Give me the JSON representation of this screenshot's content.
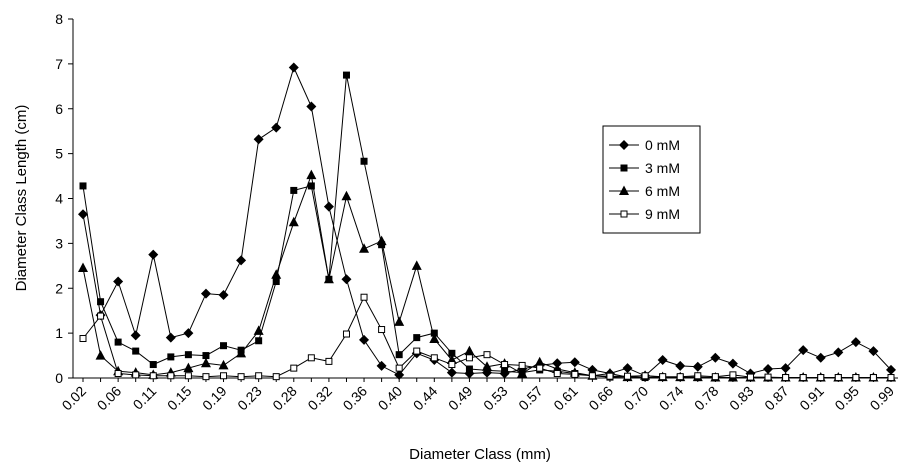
{
  "chart_data": {
    "type": "line",
    "xlabel": "Diameter Class (mm)",
    "ylabel": "Diameter Class Length (cm)",
    "ylim": [
      0,
      8
    ],
    "yticks": [
      0,
      1,
      2,
      3,
      4,
      5,
      6,
      7,
      8
    ],
    "grid": false,
    "legend_position": "center-right",
    "x_tick_labels": [
      "0.02",
      "0.06",
      "0.11",
      "0.15",
      "0.19",
      "0.23",
      "0.28",
      "0.32",
      "0.36",
      "0.40",
      "0.44",
      "0.49",
      "0.53",
      "0.57",
      "0.61",
      "0.66",
      "0.70",
      "0.74",
      "0.78",
      "0.83",
      "0.87",
      "0.91",
      "0.95",
      "0.99"
    ],
    "series": [
      {
        "name": "0 mM",
        "marker": "diamond-filled",
        "values": [
          3.65,
          1.4,
          2.15,
          0.95,
          2.75,
          0.9,
          1.0,
          1.88,
          1.85,
          2.62,
          5.32,
          5.58,
          6.92,
          6.05,
          3.82,
          2.2,
          0.85,
          0.27,
          0.07,
          0.55,
          0.4,
          0.12,
          0.1,
          0.12,
          0.1,
          0.2,
          0.28,
          0.33,
          0.35,
          0.18,
          0.1,
          0.22,
          0.05,
          0.4,
          0.27,
          0.25,
          0.45,
          0.32,
          0.1,
          0.2,
          0.22,
          0.62,
          0.45,
          0.57,
          0.8,
          0.6,
          0.18
        ]
      },
      {
        "name": "3 mM",
        "marker": "square-filled",
        "values": [
          4.28,
          1.7,
          0.8,
          0.6,
          0.3,
          0.47,
          0.52,
          0.5,
          0.72,
          0.62,
          0.83,
          2.15,
          4.18,
          4.28,
          2.2,
          6.75,
          4.83,
          2.97,
          0.52,
          0.9,
          1.0,
          0.55,
          0.2,
          0.17,
          0.15,
          0.12,
          0.18,
          0.15,
          0.1,
          0.05,
          0.02,
          0.03,
          0.01,
          0.02,
          0.01,
          0.01,
          0.02,
          0.01,
          0.01,
          0.01,
          0.01,
          0.01,
          0.01,
          0.01,
          0.01,
          0.01,
          0.01
        ]
      },
      {
        "name": "6 mM",
        "marker": "triangle-filled",
        "values": [
          2.45,
          0.5,
          0.15,
          0.12,
          0.07,
          0.12,
          0.22,
          0.33,
          0.28,
          0.55,
          1.05,
          2.3,
          3.47,
          4.52,
          2.2,
          4.05,
          2.88,
          3.05,
          1.25,
          2.5,
          0.87,
          0.4,
          0.6,
          0.25,
          0.32,
          0.1,
          0.35,
          0.2,
          0.12,
          0.05,
          0.1,
          0.02,
          0.05,
          0.02,
          0.02,
          0.02,
          0.01,
          0.01,
          0.01,
          0.01,
          0.01,
          0.01,
          0.01,
          0.01,
          0.01,
          0.01,
          0.01
        ]
      },
      {
        "name": "9 mM",
        "marker": "square-open",
        "values": [
          0.88,
          1.38,
          0.1,
          0.07,
          0.05,
          0.05,
          0.05,
          0.03,
          0.05,
          0.03,
          0.05,
          0.03,
          0.22,
          0.45,
          0.37,
          0.98,
          1.8,
          1.08,
          0.22,
          0.6,
          0.45,
          0.3,
          0.45,
          0.52,
          0.3,
          0.28,
          0.22,
          0.1,
          0.08,
          0.05,
          0.04,
          0.04,
          0.05,
          0.03,
          0.03,
          0.05,
          0.03,
          0.07,
          0.02,
          0.02,
          0.01,
          0.01,
          0.01,
          0.01,
          0.01,
          0.01,
          0.01
        ]
      }
    ]
  }
}
